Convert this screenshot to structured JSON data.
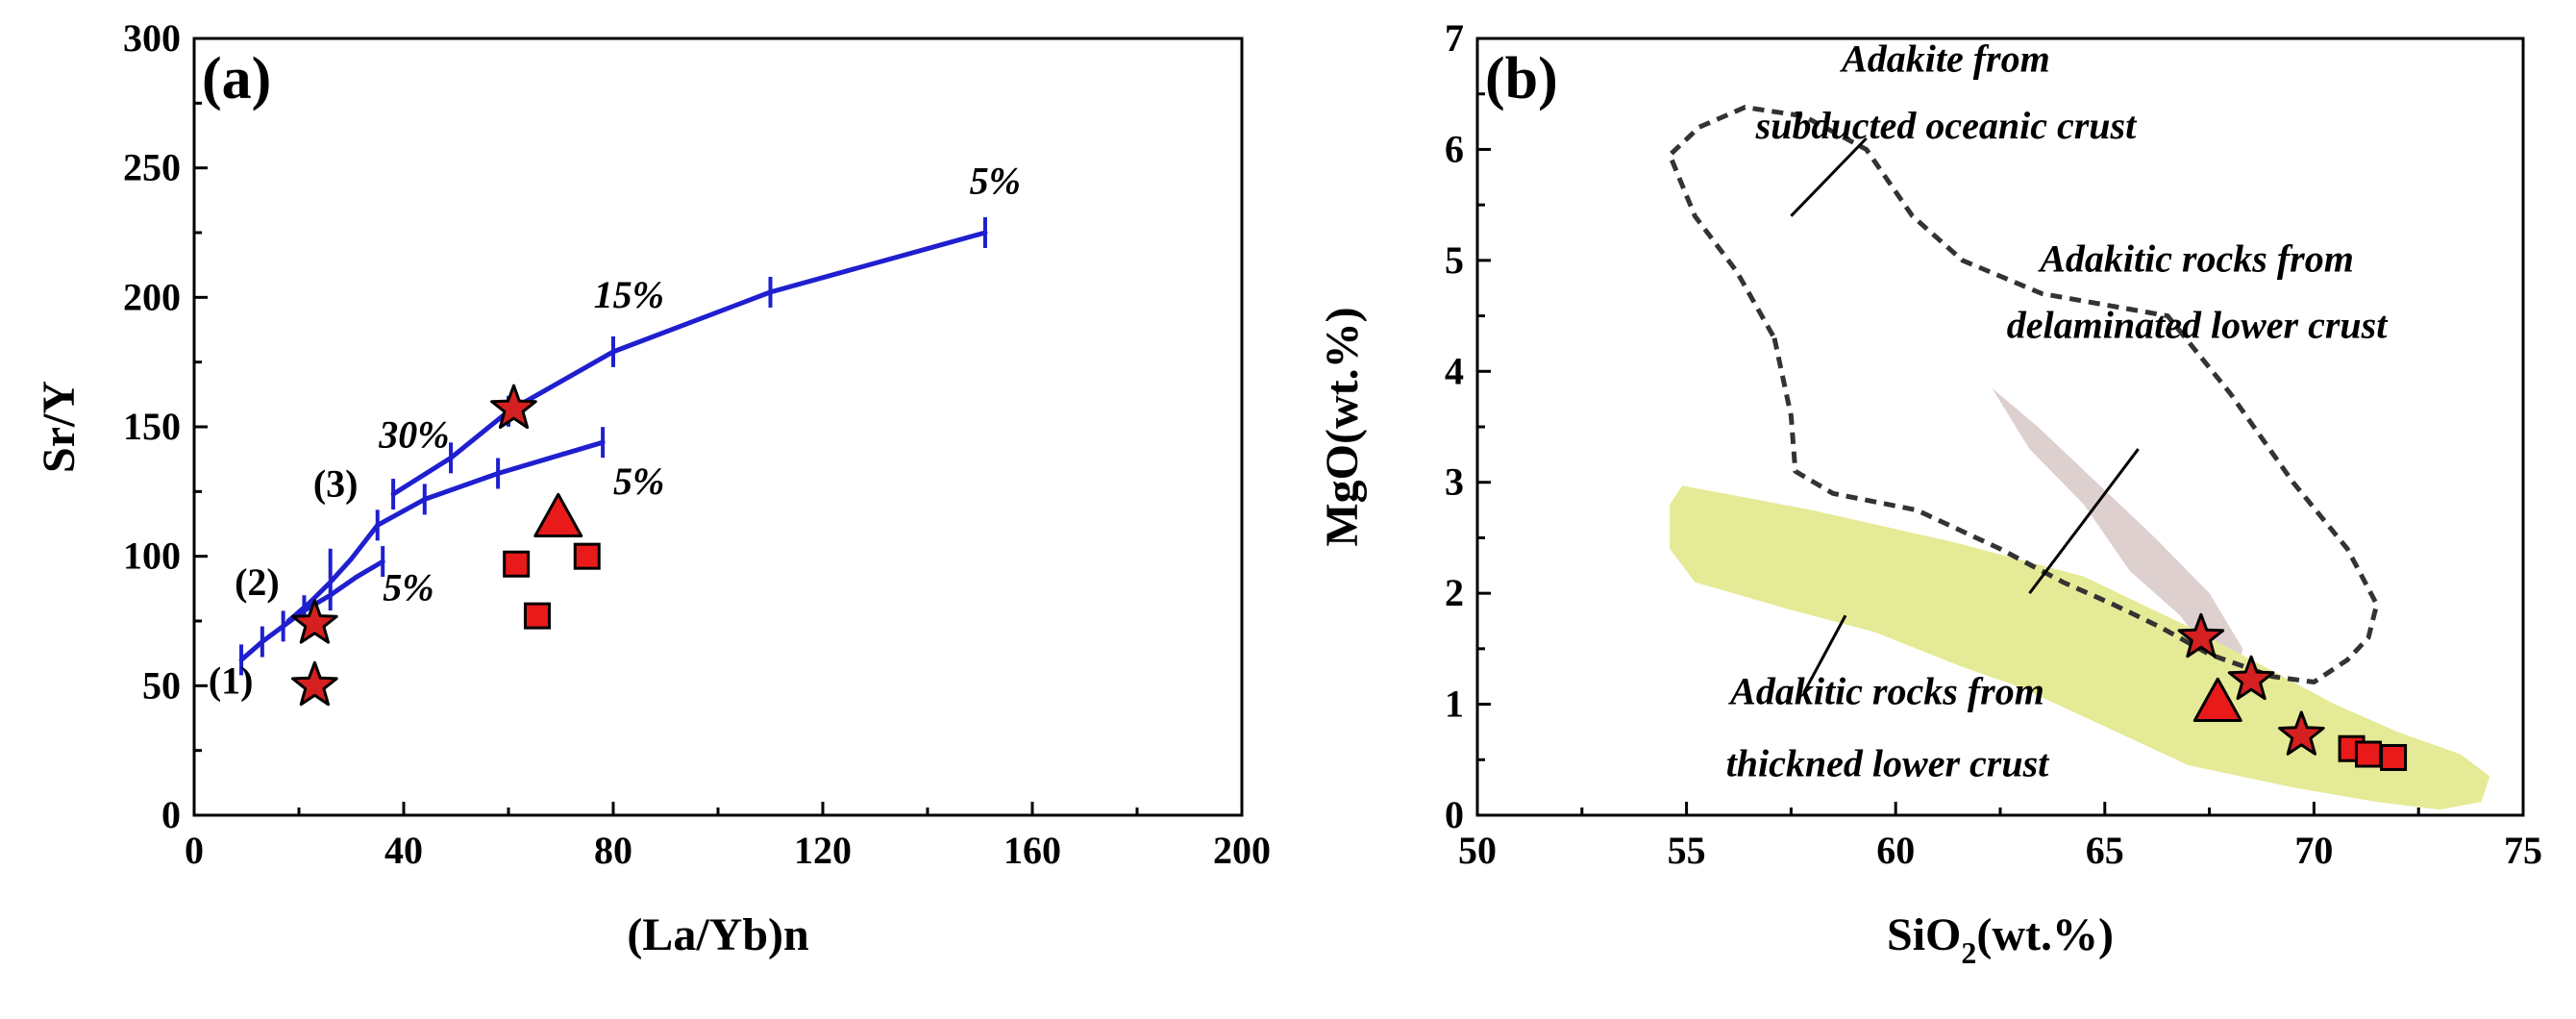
{
  "chart_data": [
    {
      "panel": "(a)",
      "type": "scatter",
      "title": "",
      "xlabel": "(La/Yb)n",
      "ylabel": "Sr/Y",
      "xlim": [
        0,
        200
      ],
      "ylim": [
        0,
        300
      ],
      "xticks": [
        "0",
        "40",
        "80",
        "120",
        "160",
        "200"
      ],
      "yticks": [
        "0",
        "50",
        "100",
        "150",
        "200",
        "250",
        "300"
      ],
      "grid": false,
      "curves": [
        {
          "name": "(1)",
          "color": "#1f1fcf",
          "points": [
            [
              9,
              60
            ],
            [
              13,
              67
            ],
            [
              17,
              73
            ],
            [
              21,
              79
            ],
            [
              26,
              85
            ],
            [
              31,
              92
            ],
            [
              36,
              98
            ]
          ],
          "ticks": [
            [
              9,
              60
            ],
            [
              13,
              67
            ],
            [
              17,
              73
            ],
            [
              21,
              79
            ],
            [
              26,
              85
            ],
            [
              36,
              98
            ]
          ],
          "label_point": [
            7,
            47
          ],
          "end_label": "5%",
          "end_label_point": [
            36,
            83
          ]
        },
        {
          "name": "(2)",
          "color": "#1f1fcf",
          "points": [
            [
              18,
              75
            ],
            [
              22,
              82
            ],
            [
              26,
              90
            ],
            [
              30,
              99
            ],
            [
              35,
              112
            ],
            [
              44,
              122
            ],
            [
              58,
              132
            ],
            [
              68,
              138
            ],
            [
              78,
              144
            ]
          ],
          "ticks": [
            [
              26,
              97
            ],
            [
              35,
              112
            ],
            [
              44,
              122
            ],
            [
              58,
              132
            ],
            [
              78,
              144
            ]
          ],
          "label_point": [
            12,
            85
          ],
          "end_label": "5%",
          "end_label_point": [
            80,
            124
          ]
        },
        {
          "name": "(3)",
          "color": "#1f1fcf",
          "points": [
            [
              38,
              124
            ],
            [
              49,
              138
            ],
            [
              60,
              156
            ],
            [
              80,
              179
            ],
            [
              110,
              202
            ],
            [
              151,
              225
            ]
          ],
          "ticks": [
            [
              38,
              124
            ],
            [
              49,
              138
            ],
            [
              60,
              156
            ],
            [
              80,
              179
            ],
            [
              110,
              202
            ],
            [
              151,
              225
            ]
          ],
          "label_point": [
            27,
            123
          ],
          "end_label": "5%",
          "end_label_point": [
            148,
            240
          ]
        }
      ],
      "annotations": [
        {
          "text": "30%",
          "x": 42,
          "y": 142
        },
        {
          "text": "15%",
          "x": 83,
          "y": 196
        }
      ],
      "markers": [
        {
          "shape": "star",
          "x": 61,
          "y": 157,
          "color": "#d42020"
        },
        {
          "shape": "star",
          "x": 23,
          "y": 74,
          "color": "#d42020"
        },
        {
          "shape": "star",
          "x": 23,
          "y": 50,
          "color": "#d42020"
        },
        {
          "shape": "triangle",
          "x": 69.5,
          "y": 115,
          "color": "#e81a1a"
        },
        {
          "shape": "square",
          "x": 61.5,
          "y": 97,
          "color": "#e81a1a"
        },
        {
          "shape": "square",
          "x": 75,
          "y": 100,
          "color": "#e81a1a"
        },
        {
          "shape": "square",
          "x": 65.5,
          "y": 77,
          "color": "#e81a1a"
        }
      ]
    },
    {
      "panel": "(b)",
      "type": "scatter",
      "title": "",
      "xlabel": "SiO2(wt.%)",
      "xlabel_main": "SiO",
      "xlabel_sub": "2",
      "xlabel_tail": "(wt.%)",
      "ylabel": "MgO(wt.%)",
      "xlim": [
        50,
        75
      ],
      "ylim": [
        0,
        7
      ],
      "xticks": [
        "50",
        "55",
        "60",
        "65",
        "70",
        "75"
      ],
      "yticks": [
        "0",
        "1",
        "2",
        "3",
        "4",
        "5",
        "6",
        "7"
      ],
      "grid": false,
      "regions": [
        {
          "name": "Adakite from subducted oceanic crust",
          "style": "dashed-outline",
          "color": "#333333",
          "label_lines": [
            "Adakite from",
            "subducted oceanic crust"
          ],
          "polygon": [
            [
              57.1,
              4.3
            ],
            [
              57.5,
              3.6
            ],
            [
              57.6,
              3.1
            ],
            [
              58.5,
              2.9
            ],
            [
              60.5,
              2.75
            ],
            [
              62.5,
              2.4
            ],
            [
              64,
              2.1
            ],
            [
              65.2,
              1.9
            ],
            [
              66.3,
              1.7
            ],
            [
              67.5,
              1.45
            ],
            [
              69,
              1.25
            ],
            [
              70,
              1.2
            ],
            [
              70.8,
              1.4
            ],
            [
              71.3,
              1.6
            ],
            [
              71.5,
              1.9
            ],
            [
              70.8,
              2.4
            ],
            [
              69.5,
              3.0
            ],
            [
              68,
              3.8
            ],
            [
              66.5,
              4.5
            ],
            [
              63.5,
              4.7
            ],
            [
              61.6,
              5.0
            ],
            [
              60.4,
              5.4
            ],
            [
              59.3,
              6.0
            ],
            [
              57.8,
              6.3
            ],
            [
              56.4,
              6.38
            ],
            [
              55.3,
              6.2
            ],
            [
              54.6,
              5.95
            ],
            [
              55.2,
              5.4
            ],
            [
              56.2,
              4.9
            ]
          ]
        },
        {
          "name": "Adakitic rocks from delaminated lower crust",
          "style": "filled",
          "color": "#ddd0cf",
          "label_lines": [
            "Adakitic rocks from",
            "delaminated lower  crust"
          ],
          "polygon": [
            [
              62.3,
              3.85
            ],
            [
              63.4,
              3.5
            ],
            [
              64.8,
              3.0
            ],
            [
              66.2,
              2.5
            ],
            [
              67.5,
              2.0
            ],
            [
              68.3,
              1.5
            ],
            [
              68.1,
              1.2
            ],
            [
              67.4,
              1.5
            ],
            [
              66.8,
              1.8
            ],
            [
              65.6,
              2.2
            ],
            [
              64.5,
              2.8
            ],
            [
              63.2,
              3.3
            ]
          ]
        },
        {
          "name": "Adakitic rocks from thickned lower crust",
          "style": "filled",
          "color": "#e5ea96",
          "label_lines": [
            "Adakitic rocks from",
            "thickned lower  crust"
          ],
          "polygon": [
            [
              54.9,
              2.97
            ],
            [
              58,
              2.75
            ],
            [
              61.5,
              2.45
            ],
            [
              64.5,
              2.15
            ],
            [
              67.0,
              1.7
            ],
            [
              69.0,
              1.3
            ],
            [
              70.5,
              1.0
            ],
            [
              72.0,
              0.75
            ],
            [
              73.5,
              0.55
            ],
            [
              74.2,
              0.35
            ],
            [
              74.0,
              0.12
            ],
            [
              73.0,
              0.05
            ],
            [
              71.5,
              0.12
            ],
            [
              69.5,
              0.25
            ],
            [
              67.0,
              0.45
            ],
            [
              65.0,
              0.8
            ],
            [
              63.0,
              1.15
            ],
            [
              61.5,
              1.35
            ],
            [
              59.5,
              1.65
            ],
            [
              57.5,
              1.85
            ],
            [
              55.2,
              2.1
            ],
            [
              54.6,
              2.4
            ],
            [
              54.6,
              2.8
            ]
          ]
        }
      ],
      "leaders": [
        [
          [
            57.5,
            5.4
          ],
          [
            59.3,
            6.1
          ]
        ],
        [
          [
            63.2,
            2.0
          ],
          [
            65.8,
            3.3
          ]
        ],
        [
          [
            58.8,
            1.8
          ],
          [
            57.8,
            1.1
          ]
        ]
      ],
      "markers": [
        {
          "shape": "star",
          "x": 67.3,
          "y": 1.6,
          "color": "#d42020"
        },
        {
          "shape": "star",
          "x": 68.5,
          "y": 1.22,
          "color": "#d42020"
        },
        {
          "shape": "star",
          "x": 69.7,
          "y": 0.72,
          "color": "#d42020"
        },
        {
          "shape": "triangle",
          "x": 67.7,
          "y": 1.02,
          "color": "#e81a1a"
        },
        {
          "shape": "square",
          "x": 70.9,
          "y": 0.6,
          "color": "#e81a1a"
        },
        {
          "shape": "square",
          "x": 71.3,
          "y": 0.55,
          "color": "#e81a1a"
        },
        {
          "shape": "square",
          "x": 71.9,
          "y": 0.52,
          "color": "#e81a1a"
        }
      ]
    }
  ]
}
